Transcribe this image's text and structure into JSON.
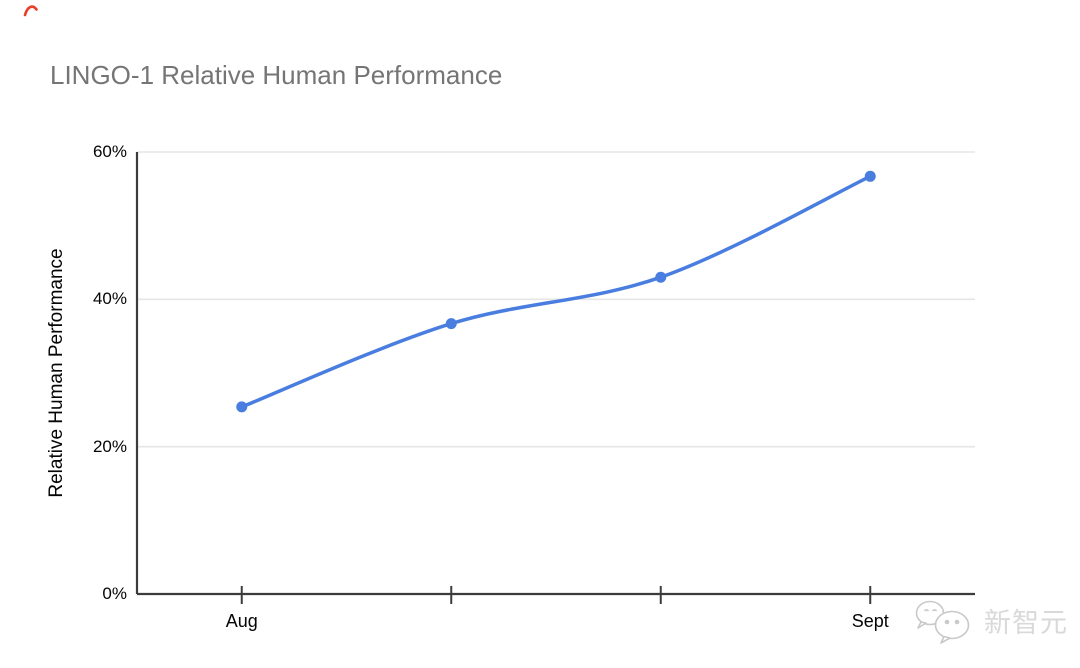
{
  "page": {
    "background": "#ffffff"
  },
  "pen_annotation": {
    "description": "small red pen stroke at top-left",
    "color": "#e8402a"
  },
  "chart": {
    "title": "LINGO-1 Relative Human Performance",
    "title_color": "#757575",
    "axis_color": "#3c3c3c",
    "gridline_color": "#e6e6e6"
  },
  "chart_data": {
    "type": "line",
    "title": "LINGO-1 Relative Human Performance",
    "xlabel": "",
    "ylabel": "Relative Human Performance",
    "categories": [
      "Aug",
      "",
      "",
      "Sept"
    ],
    "series": [
      {
        "name": "Relative Human Performance",
        "values": [
          25.4,
          36.7,
          43.0,
          56.7
        ],
        "unit": "%",
        "color": "#4a7de0"
      }
    ],
    "ylim": [
      0,
      60
    ],
    "y_tick_values": [
      0,
      20,
      40,
      60
    ],
    "y_tick_labels": [
      "0%",
      "20%",
      "40%",
      "60%"
    ],
    "grid": true,
    "smooth": true,
    "point_markers": true,
    "legend_position": "none"
  },
  "watermark": {
    "brand": "新智元",
    "icon": "wechat-chat-bubbles",
    "text_color": "#d9d9d9",
    "icon_color": "#c9c9c9"
  }
}
